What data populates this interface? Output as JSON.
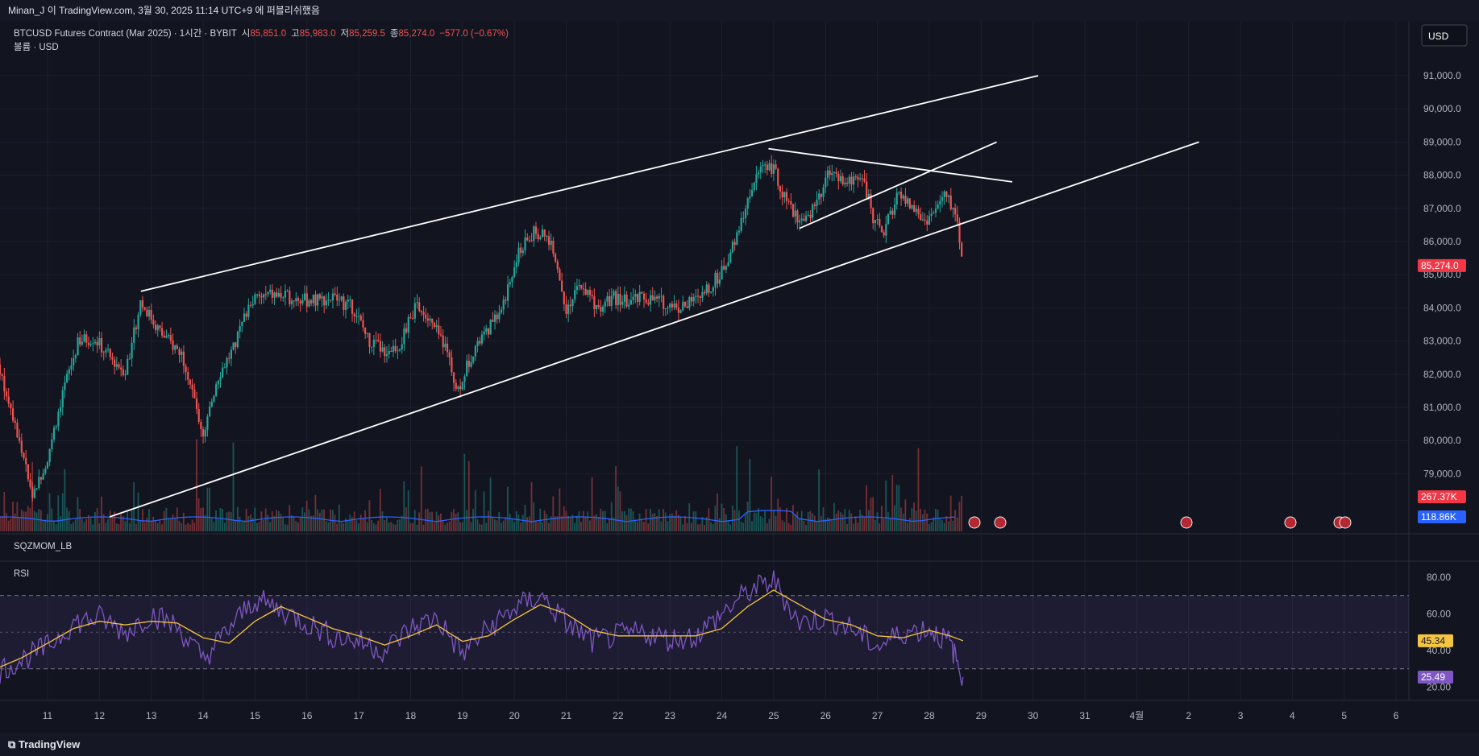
{
  "header": {
    "publish_note": "Minan_J 이 TradingView.com, 3월 30, 2025 11:14 UTC+9 에 퍼블리쉬했음"
  },
  "footer": {
    "brand": "TradingView"
  },
  "currency_button": "USD",
  "legend": {
    "symbol_line": "BTCUSD Futures Contract (Mar 2025) · 1시간 · BYBIT",
    "open_label": "시",
    "open": "85,851.0",
    "high_label": "고",
    "high": "85,983.0",
    "low_label": "저",
    "low": "85,259.5",
    "close_label": "종",
    "close": "85,274.0",
    "change": "−577.0 (−0.67%)",
    "volume_line": "볼륨 · USD"
  },
  "panes": {
    "sqz_label": "SQZMOM_LB",
    "rsi_label": "RSI"
  },
  "badges": {
    "last_price": "85,274.0",
    "volume_last": "267.37K",
    "volume_ma": "118.86K",
    "rsi_ma": "45.34",
    "rsi": "25.49"
  },
  "colors": {
    "up": "#26a69a",
    "down": "#ef5350",
    "rsi": "#7e57c2",
    "rsi_ma": "#f5c542",
    "volume_ma": "#2962ff"
  },
  "chart_data": [
    {
      "type": "candlestick",
      "title": "BTCUSD Futures Contract (Mar 2025)",
      "interval": "1시간",
      "exchange": "BYBIT",
      "x_ticks": [
        "11",
        "12",
        "13",
        "14",
        "15",
        "16",
        "17",
        "18",
        "19",
        "20",
        "21",
        "22",
        "23",
        "24",
        "25",
        "26",
        "27",
        "28",
        "29",
        "30",
        "31",
        "4월",
        "2",
        "3",
        "4",
        "5",
        "6"
      ],
      "y_ticks": [
        "79,000.0",
        "80,000.0",
        "81,000.0",
        "82,000.0",
        "83,000.0",
        "84,000.0",
        "85,000.0",
        "86,000.0",
        "87,000.0",
        "88,000.0",
        "89,000.0",
        "90,000.0",
        "91,000.0"
      ],
      "ylim": [
        77500,
        91500
      ],
      "price_path_day_close": [
        [
          10.0,
          82500
        ],
        [
          10.3,
          81000
        ],
        [
          10.7,
          78300
        ],
        [
          11.0,
          79500
        ],
        [
          11.3,
          81500
        ],
        [
          11.6,
          83000
        ],
        [
          11.9,
          83100
        ],
        [
          12.2,
          82500
        ],
        [
          12.5,
          82100
        ],
        [
          12.8,
          84200
        ],
        [
          13.2,
          83200
        ],
        [
          13.6,
          82600
        ],
        [
          14.0,
          80200
        ],
        [
          14.3,
          82000
        ],
        [
          14.6,
          82800
        ],
        [
          14.9,
          84200
        ],
        [
          15.3,
          84400
        ],
        [
          15.7,
          84300
        ],
        [
          16.1,
          84200
        ],
        [
          16.5,
          84300
        ],
        [
          16.9,
          84000
        ],
        [
          17.2,
          83000
        ],
        [
          17.5,
          82700
        ],
        [
          17.8,
          82900
        ],
        [
          18.1,
          84100
        ],
        [
          18.4,
          83500
        ],
        [
          18.7,
          82800
        ],
        [
          18.9,
          81500
        ],
        [
          19.2,
          82700
        ],
        [
          19.5,
          83400
        ],
        [
          19.8,
          84200
        ],
        [
          20.1,
          85700
        ],
        [
          20.4,
          86300
        ],
        [
          20.7,
          86000
        ],
        [
          21.0,
          84000
        ],
        [
          21.3,
          84700
        ],
        [
          21.6,
          84000
        ],
        [
          21.9,
          84300
        ],
        [
          22.2,
          84200
        ],
        [
          22.5,
          84300
        ],
        [
          22.8,
          84200
        ],
        [
          23.2,
          84000
        ],
        [
          23.6,
          84300
        ],
        [
          24.0,
          85100
        ],
        [
          24.3,
          86200
        ],
        [
          24.5,
          87300
        ],
        [
          24.8,
          88400
        ],
        [
          25.0,
          88200
        ],
        [
          25.3,
          87000
        ],
        [
          25.6,
          86500
        ],
        [
          25.9,
          87400
        ],
        [
          26.1,
          88200
        ],
        [
          26.4,
          87700
        ],
        [
          26.7,
          88100
        ],
        [
          26.9,
          86800
        ],
        [
          27.1,
          86200
        ],
        [
          27.4,
          87400
        ],
        [
          27.7,
          87000
        ],
        [
          27.9,
          86600
        ],
        [
          28.1,
          86900
        ],
        [
          28.3,
          87400
        ],
        [
          28.5,
          86900
        ],
        [
          28.6,
          86000
        ],
        [
          28.65,
          85274
        ]
      ],
      "trendlines": [
        {
          "from": [
            12.8,
            84500
          ],
          "to": [
            30.1,
            91000
          ]
        },
        {
          "from": [
            12.2,
            77700
          ],
          "to": [
            33.2,
            89000
          ]
        },
        {
          "from": [
            24.9,
            88800
          ],
          "to": [
            29.6,
            87800
          ]
        },
        {
          "from": [
            25.5,
            86400
          ],
          "to": [
            29.3,
            89000
          ]
        }
      ]
    },
    {
      "type": "line",
      "title": "RSI",
      "ylim": [
        15,
        85
      ],
      "y_ticks": [
        "20.00",
        "40.00",
        "60.00",
        "80.00"
      ],
      "band": [
        30,
        70
      ],
      "midline": 50,
      "series": [
        {
          "values_x": [
            10.0,
            10.5,
            11.0,
            11.5,
            12.0,
            12.5,
            13.0,
            13.5,
            14.0,
            14.5,
            15.0,
            15.5,
            16.0,
            16.5,
            17.0,
            17.5,
            18.0,
            18.5,
            19.0,
            19.5,
            20.0,
            20.5,
            21.0,
            21.5,
            22.0,
            22.5,
            23.0,
            23.5,
            24.0,
            24.5,
            25.0,
            25.5,
            26.0,
            26.5,
            27.0,
            27.5,
            28.0,
            28.4,
            28.65
          ],
          "values": [
            28,
            35,
            42,
            55,
            58,
            50,
            60,
            53,
            35,
            52,
            68,
            62,
            55,
            48,
            45,
            40,
            52,
            58,
            38,
            52,
            63,
            70,
            55,
            45,
            48,
            50,
            46,
            48,
            60,
            72,
            78,
            55,
            58,
            52,
            42,
            50,
            52,
            44,
            25.49
          ]
        },
        {
          "values_x": [
            10.0,
            10.5,
            11.0,
            11.5,
            12.0,
            12.5,
            13.0,
            13.5,
            14.0,
            14.5,
            15.0,
            15.5,
            16.0,
            16.5,
            17.0,
            17.5,
            18.0,
            18.5,
            19.0,
            19.5,
            20.0,
            20.5,
            21.0,
            21.5,
            22.0,
            22.5,
            23.0,
            23.5,
            24.0,
            24.5,
            25.0,
            25.5,
            26.0,
            26.5,
            27.0,
            27.5,
            28.0,
            28.4,
            28.65
          ],
          "values": [
            30,
            36,
            44,
            52,
            56,
            54,
            56,
            55,
            47,
            44,
            56,
            64,
            58,
            52,
            48,
            43,
            48,
            54,
            45,
            48,
            57,
            65,
            60,
            51,
            48,
            48,
            48,
            48,
            52,
            64,
            73,
            65,
            57,
            54,
            48,
            47,
            51,
            48,
            45.34
          ]
        }
      ]
    }
  ]
}
